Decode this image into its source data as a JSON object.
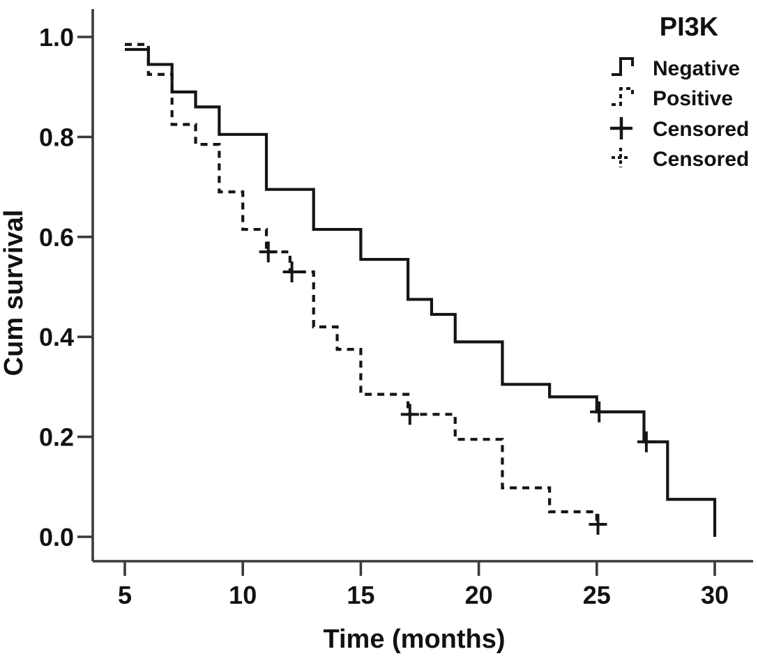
{
  "figure": {
    "colors": {
      "ink": "#151515",
      "axis": "#3a3a3a",
      "background": "#ffffff"
    },
    "y_axis": {
      "label": "Cum survival",
      "ticks": [
        1.0,
        0.8,
        0.6,
        0.4,
        0.2,
        0.0
      ]
    },
    "x_axis": {
      "label": "Time (months)",
      "ticks": [
        5,
        10,
        15,
        20,
        25,
        30
      ]
    },
    "legend": {
      "title": "PI3K",
      "items": [
        {
          "label": "Negative",
          "style": "solid-step"
        },
        {
          "label": "Positive",
          "style": "dashed-step"
        },
        {
          "label": "Censored",
          "style": "solid-plus"
        },
        {
          "label": "Censored",
          "style": "dashed-plus"
        }
      ]
    }
  },
  "chart_data": {
    "type": "line",
    "subtype": "kaplan-meier-step",
    "title": "PI3K",
    "xlabel": "Time (months)",
    "ylabel": "Cum survival",
    "xlim": [
      3.6,
      31.6
    ],
    "ylim": [
      0.0,
      1.05
    ],
    "x_ticks": [
      5,
      10,
      15,
      20,
      25,
      30
    ],
    "y_ticks": [
      1.0,
      0.8,
      0.6,
      0.4,
      0.2,
      0.0
    ],
    "grid": false,
    "legend_position": "top-right",
    "series": [
      {
        "name": "Negative",
        "line": "solid",
        "points": [
          [
            5,
            0.975
          ],
          [
            6,
            0.945
          ],
          [
            7,
            0.89
          ],
          [
            8,
            0.86
          ],
          [
            9,
            0.805
          ],
          [
            11,
            0.695
          ],
          [
            13,
            0.615
          ],
          [
            15,
            0.555
          ],
          [
            17,
            0.475
          ],
          [
            18,
            0.445
          ],
          [
            19,
            0.39
          ],
          [
            21,
            0.305
          ],
          [
            23,
            0.28
          ],
          [
            25,
            0.25
          ],
          [
            27,
            0.19
          ],
          [
            28,
            0.075
          ],
          [
            30,
            0.0
          ]
        ],
        "end_x": 30,
        "censored": [
          [
            25.1,
            0.25
          ],
          [
            27.1,
            0.19
          ]
        ]
      },
      {
        "name": "Positive",
        "line": "dashed",
        "points": [
          [
            5,
            0.985
          ],
          [
            6,
            0.925
          ],
          [
            7,
            0.825
          ],
          [
            8,
            0.785
          ],
          [
            9,
            0.69
          ],
          [
            10,
            0.615
          ],
          [
            11,
            0.57
          ],
          [
            12,
            0.53
          ],
          [
            13,
            0.42
          ],
          [
            14,
            0.375
          ],
          [
            15,
            0.285
          ],
          [
            17,
            0.245
          ],
          [
            19,
            0.195
          ],
          [
            21,
            0.098
          ],
          [
            23,
            0.05
          ],
          [
            25,
            0.025
          ]
        ],
        "end_x": 25.3,
        "censored": [
          [
            11.08,
            0.57
          ],
          [
            12.08,
            0.53
          ],
          [
            17.08,
            0.245
          ],
          [
            25.05,
            0.025
          ]
        ]
      }
    ]
  }
}
